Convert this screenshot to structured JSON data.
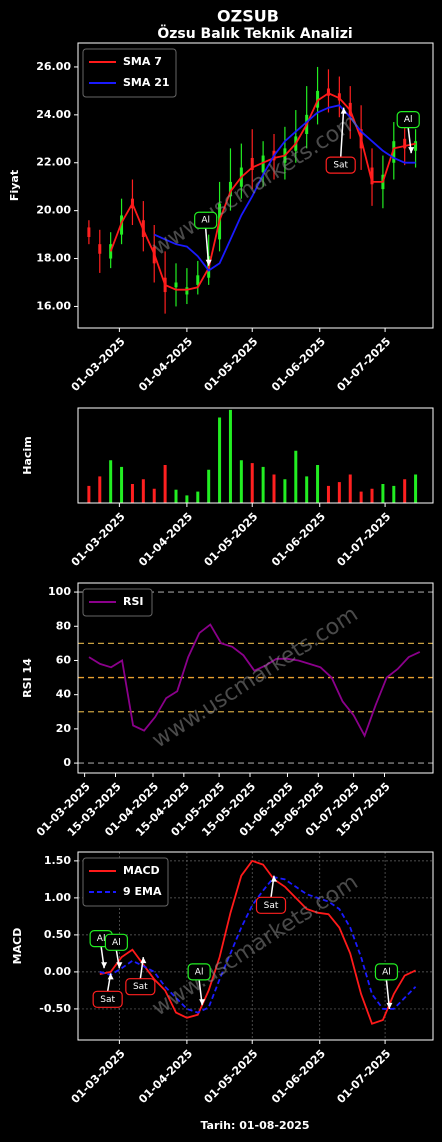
{
  "title": "OZSUB",
  "subtitle": "Özsu Balık Teknik Analizi",
  "x_label": "Tarih: 01-08-2025",
  "chart_data": [
    {
      "type": "candlestick",
      "y_label": "Fiyat",
      "watermark": "www.uscmarkets.com",
      "xlim": [
        "2025-02-10",
        "2025-07-23"
      ],
      "ylim": [
        15.1,
        27.0
      ],
      "xticks": [
        {
          "value": "2025-03-01",
          "label": "01-03-2025"
        },
        {
          "value": "2025-04-01",
          "label": "01-04-2025"
        },
        {
          "value": "2025-05-01",
          "label": "01-05-2025"
        },
        {
          "value": "2025-06-01",
          "label": "01-06-2025"
        },
        {
          "value": "2025-07-01",
          "label": "01-07-2025"
        }
      ],
      "yticks": [
        {
          "value": 16,
          "label": "16.00"
        },
        {
          "value": 18,
          "label": "18.00"
        },
        {
          "value": 20,
          "label": "20.00"
        },
        {
          "value": 22,
          "label": "22.00"
        },
        {
          "value": 24,
          "label": "24.00"
        },
        {
          "value": 26,
          "label": "26.00"
        }
      ],
      "x": [
        "2025-02-15",
        "2025-02-20",
        "2025-02-25",
        "2025-03-02",
        "2025-03-07",
        "2025-03-12",
        "2025-03-17",
        "2025-03-22",
        "2025-03-27",
        "2025-04-01",
        "2025-04-06",
        "2025-04-11",
        "2025-04-16",
        "2025-04-21",
        "2025-04-26",
        "2025-05-01",
        "2025-05-06",
        "2025-05-11",
        "2025-05-16",
        "2025-05-21",
        "2025-05-26",
        "2025-05-31",
        "2025-06-05",
        "2025-06-10",
        "2025-06-15",
        "2025-06-20",
        "2025-06-25",
        "2025-06-30",
        "2025-07-05",
        "2025-07-10",
        "2025-07-15"
      ],
      "candles": {
        "up_color": "#22ee22",
        "down_color": "#ff2020",
        "open": [
          19.3,
          18.6,
          18.0,
          19.0,
          20.5,
          19.6,
          18.5,
          17.2,
          16.8,
          16.5,
          16.9,
          17.2,
          18.8,
          20.6,
          21.0,
          22.2,
          21.6,
          22.5,
          22.0,
          22.5,
          23.2,
          24.3,
          25.1,
          24.9,
          24.5,
          23.4,
          21.8,
          20.9,
          22.0,
          23.0,
          22.5
        ],
        "close": [
          18.9,
          18.2,
          18.6,
          19.8,
          20.1,
          18.9,
          17.8,
          16.6,
          17.0,
          16.8,
          17.3,
          18.1,
          20.3,
          21.2,
          21.8,
          21.7,
          22.3,
          22.1,
          22.6,
          23.1,
          24.0,
          25.0,
          24.8,
          24.6,
          23.9,
          22.6,
          21.1,
          21.5,
          22.9,
          22.6,
          22.9
        ],
        "high": [
          19.6,
          19.2,
          19.1,
          20.5,
          21.3,
          20.4,
          19.4,
          18.3,
          17.8,
          17.6,
          17.9,
          19.0,
          21.2,
          22.6,
          22.8,
          23.4,
          22.9,
          23.2,
          23.5,
          24.2,
          25.2,
          26.0,
          25.9,
          25.6,
          25.2,
          24.4,
          22.6,
          22.3,
          23.7,
          23.6,
          23.4
        ],
        "low": [
          18.6,
          17.4,
          17.6,
          18.6,
          19.4,
          18.3,
          17.0,
          15.7,
          16.0,
          16.1,
          16.5,
          16.9,
          18.3,
          20.0,
          20.5,
          20.9,
          21.0,
          21.3,
          21.3,
          22.0,
          22.6,
          23.6,
          24.1,
          23.9,
          23.0,
          21.7,
          20.2,
          20.1,
          21.3,
          21.9,
          21.8
        ]
      },
      "series": [
        {
          "name": "SMA 7",
          "color": "#ff1a1a",
          "values": [
            null,
            null,
            18.3,
            19.5,
            20.3,
            19.2,
            18.2,
            16.9,
            16.7,
            16.7,
            16.8,
            17.6,
            19.6,
            20.8,
            21.4,
            21.8,
            22.0,
            22.2,
            22.3,
            22.8,
            23.6,
            24.6,
            24.9,
            24.7,
            24.2,
            23.0,
            21.2,
            21.2,
            22.6,
            22.7,
            22.8
          ]
        },
        {
          "name": "SMA 21",
          "color": "#1a1aff",
          "values": [
            null,
            null,
            null,
            null,
            null,
            null,
            19.0,
            18.8,
            18.6,
            18.5,
            18.1,
            17.5,
            17.8,
            18.8,
            19.8,
            20.6,
            21.5,
            22.3,
            22.9,
            23.3,
            23.7,
            24.1,
            24.3,
            24.4,
            23.9,
            23.3,
            22.9,
            22.5,
            22.2,
            22.0,
            22.0
          ]
        }
      ],
      "legend": "upper left",
      "annotations": [
        {
          "text": "Al",
          "x": "2025-04-11",
          "y": 17.7,
          "label_y": 19.6,
          "color": "#22ee22"
        },
        {
          "text": "Sat",
          "x": "2025-06-12",
          "y": 24.3,
          "label_y": 21.9,
          "color": "#ff2020"
        },
        {
          "text": "Al",
          "x": "2025-07-13",
          "y": 22.4,
          "label_y": 23.8,
          "color": "#22ee22"
        }
      ]
    },
    {
      "type": "bar",
      "y_label": "Hacim",
      "xlim": [
        "2025-02-10",
        "2025-07-23"
      ],
      "ylim": [
        0,
        100
      ],
      "xticks": [
        {
          "value": "2025-03-01",
          "label": "01-03-2025"
        },
        {
          "value": "2025-04-01",
          "label": "01-04-2025"
        },
        {
          "value": "2025-05-01",
          "label": "01-05-2025"
        },
        {
          "value": "2025-06-01",
          "label": "01-06-2025"
        },
        {
          "value": "2025-07-01",
          "label": "01-07-2025"
        }
      ],
      "x": [
        "2025-02-15",
        "2025-02-20",
        "2025-02-25",
        "2025-03-02",
        "2025-03-07",
        "2025-03-12",
        "2025-03-17",
        "2025-03-22",
        "2025-03-27",
        "2025-04-01",
        "2025-04-06",
        "2025-04-11",
        "2025-04-16",
        "2025-04-21",
        "2025-04-26",
        "2025-05-01",
        "2025-05-06",
        "2025-05-11",
        "2025-05-16",
        "2025-05-21",
        "2025-05-26",
        "2025-05-31",
        "2025-06-05",
        "2025-06-10",
        "2025-06-15",
        "2025-06-20",
        "2025-06-25",
        "2025-06-30",
        "2025-07-05",
        "2025-07-10",
        "2025-07-15"
      ],
      "values": [
        18,
        28,
        45,
        38,
        20,
        25,
        15,
        40,
        14,
        8,
        12,
        35,
        90,
        98,
        45,
        42,
        38,
        30,
        25,
        55,
        28,
        40,
        18,
        22,
        30,
        12,
        15,
        20,
        18,
        25,
        30
      ],
      "colors": [
        "#ff2020",
        "#ff2020",
        "#22ee22",
        "#22ee22",
        "#ff2020",
        "#ff2020",
        "#ff2020",
        "#ff2020",
        "#22ee22",
        "#22ee22",
        "#22ee22",
        "#22ee22",
        "#22ee22",
        "#22ee22",
        "#22ee22",
        "#ff2020",
        "#22ee22",
        "#ff2020",
        "#22ee22",
        "#22ee22",
        "#22ee22",
        "#22ee22",
        "#ff2020",
        "#ff2020",
        "#ff2020",
        "#ff2020",
        "#ff2020",
        "#22ee22",
        "#22ee22",
        "#ff2020",
        "#22ee22"
      ]
    },
    {
      "type": "line",
      "y_label": "RSI 14",
      "watermark": "www.uscmarkets.com",
      "xlim": [
        "2025-02-26",
        "2025-08-06"
      ],
      "ylim": [
        -5.8,
        105.3
      ],
      "xticks": [
        {
          "value": "2025-03-01",
          "label": "01-03-2025"
        },
        {
          "value": "2025-03-15",
          "label": "15-03-2025"
        },
        {
          "value": "2025-04-01",
          "label": "01-04-2025"
        },
        {
          "value": "2025-04-15",
          "label": "15-04-2025"
        },
        {
          "value": "2025-05-01",
          "label": "01-05-2025"
        },
        {
          "value": "2025-05-15",
          "label": "15-05-2025"
        },
        {
          "value": "2025-06-01",
          "label": "01-06-2025"
        },
        {
          "value": "2025-06-15",
          "label": "15-06-2025"
        },
        {
          "value": "2025-07-01",
          "label": "01-07-2025"
        },
        {
          "value": "2025-07-15",
          "label": "15-07-2025"
        }
      ],
      "yticks": [
        0,
        20,
        40,
        60,
        80,
        100
      ],
      "hlines": [
        {
          "value": 0,
          "color": "#808080"
        },
        {
          "value": 30,
          "color": "#c8a040"
        },
        {
          "value": 50,
          "color": "#e8a030"
        },
        {
          "value": 70,
          "color": "#c8a040"
        },
        {
          "value": 100,
          "color": "#808080"
        }
      ],
      "x": [
        "2025-03-03",
        "2025-03-08",
        "2025-03-13",
        "2025-03-18",
        "2025-03-23",
        "2025-03-28",
        "2025-04-02",
        "2025-04-07",
        "2025-04-12",
        "2025-04-17",
        "2025-04-22",
        "2025-04-27",
        "2025-05-02",
        "2025-05-07",
        "2025-05-12",
        "2025-05-17",
        "2025-05-22",
        "2025-05-27",
        "2025-06-01",
        "2025-06-06",
        "2025-06-11",
        "2025-06-16",
        "2025-06-21",
        "2025-06-26",
        "2025-07-01",
        "2025-07-06",
        "2025-07-11",
        "2025-07-16",
        "2025-07-21",
        "2025-07-26",
        "2025-07-31"
      ],
      "series": [
        {
          "name": "RSI",
          "color": "#8b008b",
          "values": [
            62,
            58,
            56,
            60,
            22,
            19,
            27,
            38,
            42,
            62,
            76,
            81,
            70,
            68,
            63,
            54,
            57,
            61,
            61,
            60,
            58,
            56,
            50,
            36,
            28,
            16,
            34,
            50,
            55,
            62,
            65
          ]
        }
      ],
      "legend": "upper left"
    },
    {
      "type": "line",
      "y_label": "MACD",
      "watermark": "www.uscmarkets.com",
      "grid": true,
      "xlim": [
        "2025-02-10",
        "2025-07-23"
      ],
      "ylim": [
        -0.92,
        1.62
      ],
      "xticks": [
        {
          "value": "2025-03-01",
          "label": "01-03-2025"
        },
        {
          "value": "2025-04-01",
          "label": "01-04-2025"
        },
        {
          "value": "2025-05-01",
          "label": "01-05-2025"
        },
        {
          "value": "2025-06-01",
          "label": "01-06-2025"
        },
        {
          "value": "2025-07-01",
          "label": "01-07-2025"
        }
      ],
      "yticks": [
        {
          "value": -0.5,
          "label": "-0.50"
        },
        {
          "value": 0,
          "label": "0.00"
        },
        {
          "value": 0.5,
          "label": "0.50"
        },
        {
          "value": 1,
          "label": "1.00"
        },
        {
          "value": 1.5,
          "label": "1.50"
        }
      ],
      "x": [
        "2025-02-20",
        "2025-02-25",
        "2025-03-02",
        "2025-03-07",
        "2025-03-12",
        "2025-03-17",
        "2025-03-22",
        "2025-03-27",
        "2025-04-01",
        "2025-04-06",
        "2025-04-11",
        "2025-04-16",
        "2025-04-21",
        "2025-04-26",
        "2025-05-01",
        "2025-05-06",
        "2025-05-11",
        "2025-05-16",
        "2025-05-21",
        "2025-05-26",
        "2025-05-31",
        "2025-06-05",
        "2025-06-10",
        "2025-06-15",
        "2025-06-20",
        "2025-06-25",
        "2025-06-30",
        "2025-07-05",
        "2025-07-10",
        "2025-07-15"
      ],
      "series": [
        {
          "name": "MACD",
          "color": "#ff1a1a",
          "values": [
            -0.03,
            0.0,
            0.2,
            0.3,
            0.1,
            -0.1,
            -0.25,
            -0.55,
            -0.62,
            -0.58,
            -0.25,
            0.2,
            0.8,
            1.3,
            1.5,
            1.45,
            1.25,
            1.15,
            1.0,
            0.85,
            0.8,
            0.78,
            0.6,
            0.25,
            -0.3,
            -0.7,
            -0.65,
            -0.3,
            -0.05,
            0.02
          ]
        },
        {
          "name": "9 EMA",
          "color": "#1a1aff",
          "dashed": true,
          "values": [
            0.0,
            -0.04,
            0.05,
            0.15,
            0.08,
            0.0,
            -0.2,
            -0.35,
            -0.5,
            -0.55,
            -0.48,
            -0.1,
            0.25,
            0.6,
            0.9,
            1.1,
            1.28,
            1.25,
            1.15,
            1.05,
            1.0,
            0.95,
            0.85,
            0.6,
            0.2,
            -0.3,
            -0.5,
            -0.5,
            -0.35,
            -0.2
          ]
        }
      ],
      "legend": "upper left",
      "annotations": [
        {
          "text": "Al",
          "x": "2025-02-22",
          "y": 0.05,
          "label_y": 0.45,
          "color": "#22ee22"
        },
        {
          "text": "Sat",
          "x": "2025-02-25",
          "y": -0.02,
          "label_y": -0.37,
          "color": "#ff2020"
        },
        {
          "text": "Al",
          "x": "2025-03-01",
          "y": 0.05,
          "label_y": 0.4,
          "color": "#22ee22"
        },
        {
          "text": "Sat",
          "x": "2025-03-12",
          "y": 0.2,
          "label_y": -0.2,
          "color": "#ff2020"
        },
        {
          "text": "Al",
          "x": "2025-04-08",
          "y": -0.45,
          "label_y": 0.0,
          "color": "#22ee22"
        },
        {
          "text": "Sat",
          "x": "2025-05-11",
          "y": 1.3,
          "label_y": 0.9,
          "color": "#ff2020"
        },
        {
          "text": "Al",
          "x": "2025-07-03",
          "y": -0.5,
          "label_y": 0.0,
          "color": "#22ee22"
        }
      ]
    }
  ]
}
